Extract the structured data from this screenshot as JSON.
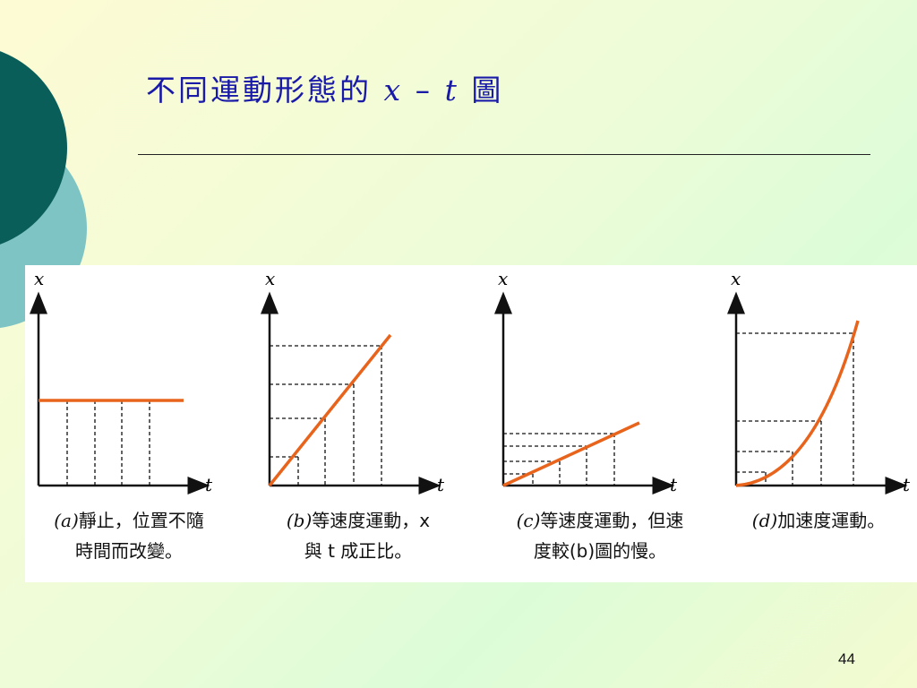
{
  "slide": {
    "title_text": "不同運動形態的",
    "title_var_x": "x",
    "title_dash": "–",
    "title_var_t": "t",
    "title_suffix": "圖",
    "page_number": "44"
  },
  "colors": {
    "title": "#1a1aa8",
    "curve": "#e8641c",
    "deco_dark": "#0a5e5a",
    "deco_light": "#7fc4c4"
  },
  "graphs": [
    {
      "id": "a",
      "x_axis_label": "t",
      "y_axis_label": "x",
      "caption_prefix": "(a)",
      "caption_line1": "靜止，位置不隨",
      "caption_line2": "時間而改變。"
    },
    {
      "id": "b",
      "x_axis_label": "t",
      "y_axis_label": "x",
      "caption_prefix": "(b)",
      "caption_line1": "等速度運動，x",
      "caption_line2": "與 t 成正比。"
    },
    {
      "id": "c",
      "x_axis_label": "t",
      "y_axis_label": "x",
      "caption_prefix": "(c)",
      "caption_line1": "等速度運動，但速",
      "caption_line2": "度較(b)圖的慢。"
    },
    {
      "id": "d",
      "x_axis_label": "t",
      "y_axis_label": "x",
      "caption_prefix": "(d)",
      "caption_line1": "加速度運動。",
      "caption_line2": ""
    }
  ]
}
